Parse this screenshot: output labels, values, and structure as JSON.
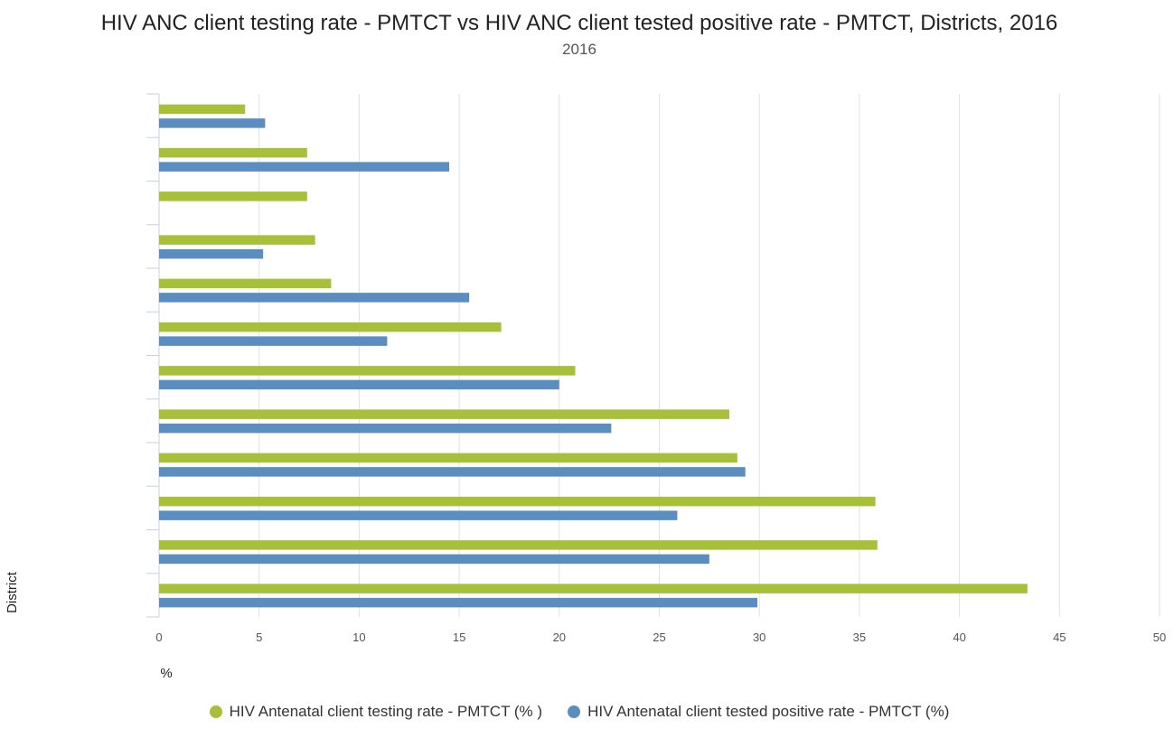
{
  "title": "HIV ANC client testing rate - PMTCT vs HIV ANC client tested positive rate - PMTCT, Districts, 2016",
  "subtitle": "2016",
  "chart_data": {
    "type": "bar",
    "orientation": "horizontal",
    "xlabel": "%",
    "ylabel": "District",
    "xlim": [
      0,
      50
    ],
    "x_ticks": [
      "0",
      "5",
      "10",
      "15",
      "20",
      "25",
      "30",
      "35",
      "40",
      "45",
      "50"
    ],
    "categories": [
      "",
      "",
      "",
      "",
      "",
      "",
      "",
      "",
      "",
      "",
      "",
      ""
    ],
    "grid": true,
    "legend_position": "bottom",
    "series": [
      {
        "name": "HIV Antenatal client testing rate - PMTCT (% )",
        "color": "#a8bf3a",
        "values": [
          4.3,
          7.4,
          7.4,
          7.8,
          8.6,
          17.1,
          20.8,
          28.5,
          28.9,
          35.8,
          35.9,
          43.4
        ]
      },
      {
        "name": "HIV Antenatal client tested positive rate - PMTCT (%)",
        "color": "#5b8ec0",
        "values": [
          5.3,
          14.5,
          null,
          5.2,
          15.5,
          11.4,
          20.0,
          22.6,
          29.3,
          25.9,
          27.5,
          29.9
        ]
      }
    ]
  }
}
